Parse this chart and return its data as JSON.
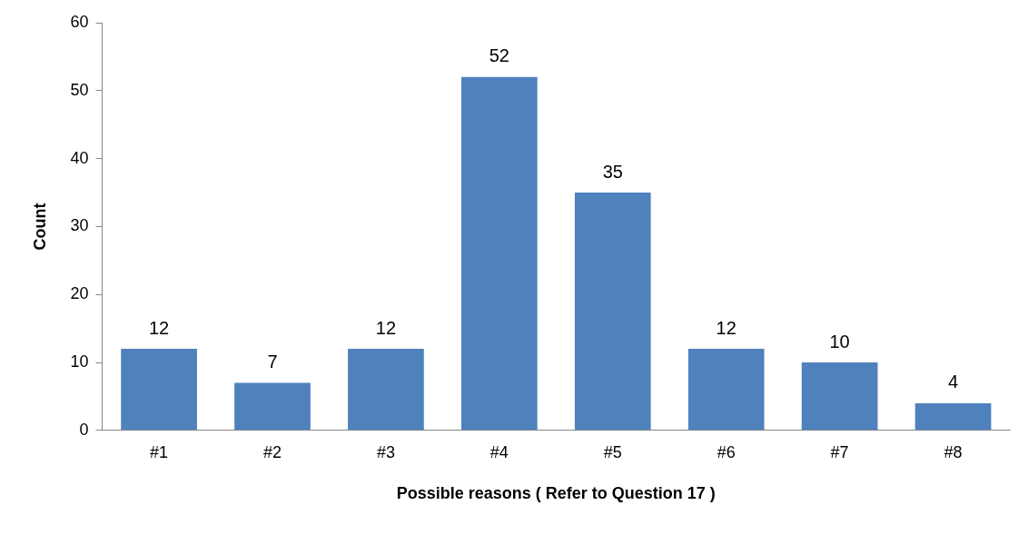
{
  "chart_data": {
    "type": "bar",
    "xlabel": "Possible reasons ( Refer to Question 17 )",
    "ylabel": "Count",
    "categories": [
      "#1",
      "#2",
      "#3",
      "#4",
      "#5",
      "#6",
      "#7",
      "#8"
    ],
    "values": [
      12,
      7,
      12,
      52,
      35,
      12,
      10,
      4
    ],
    "color": "#4f81bd",
    "ylim": [
      0,
      60
    ],
    "yticks": [
      0,
      10,
      20,
      30,
      40,
      50,
      60
    ],
    "grid": false,
    "legend": false,
    "data_labels": true
  }
}
